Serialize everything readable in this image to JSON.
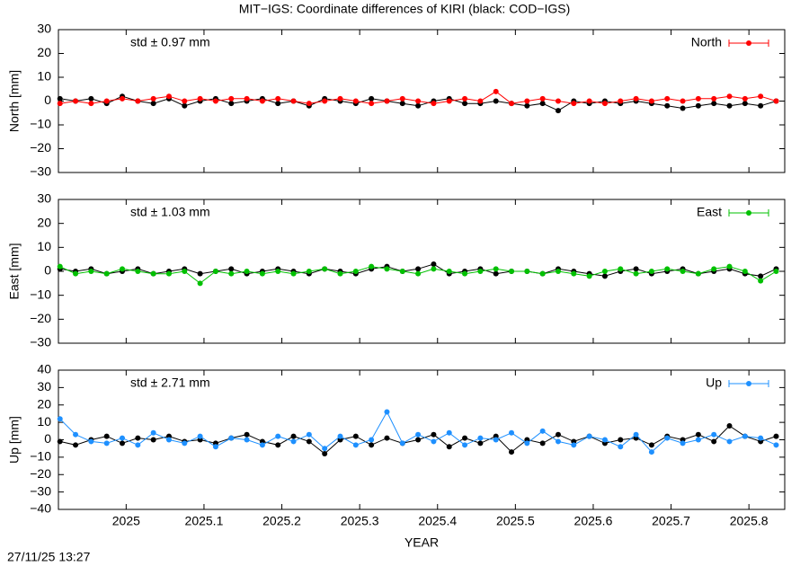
{
  "title": "MIT−IGS: Coordinate differences of KIRI (black: COD−IGS)",
  "timestamp": "27/11/25 13:27",
  "chart_data": [
    {
      "type": "line",
      "y_label": "North [mm]",
      "annotation": "std ± 0.97 mm",
      "annotation_color": "#ff0000",
      "x": [
        2024.915,
        2024.935,
        2024.955,
        2024.975,
        2024.995,
        2025.015,
        2025.035,
        2025.055,
        2025.075,
        2025.095,
        2025.115,
        2025.135,
        2025.155,
        2025.175,
        2025.195,
        2025.215,
        2025.235,
        2025.255,
        2025.275,
        2025.295,
        2025.315,
        2025.335,
        2025.355,
        2025.375,
        2025.395,
        2025.415,
        2025.435,
        2025.455,
        2025.475,
        2025.495,
        2025.515,
        2025.535,
        2025.555,
        2025.575,
        2025.595,
        2025.615,
        2025.635,
        2025.655,
        2025.675,
        2025.695,
        2025.715,
        2025.735,
        2025.755,
        2025.775,
        2025.795,
        2025.815,
        2025.835
      ],
      "xlim": [
        2024.913,
        2025.846
      ],
      "xticks": [
        2025,
        2025.1,
        2025.2,
        2025.3,
        2025.4,
        2025.5,
        2025.6,
        2025.7,
        2025.8
      ],
      "ylim": [
        -30,
        30
      ],
      "yticks": [
        {
          "value": -30,
          "label": "−30"
        },
        {
          "value": -20,
          "label": "−20"
        },
        {
          "value": -10,
          "label": "−10"
        },
        0,
        10,
        20,
        30
      ],
      "grid": false,
      "legend": "top-right",
      "series": [
        {
          "color": "#000000",
          "values": [
            1,
            0,
            1,
            -1,
            2,
            0,
            -1,
            1,
            -2,
            0,
            1,
            -1,
            0,
            1,
            -1,
            0,
            -2,
            1,
            0,
            -1,
            1,
            0,
            -1,
            -2,
            0,
            1,
            -1,
            -1,
            0,
            -1,
            -2,
            -1,
            -4,
            0,
            -1,
            0,
            -1,
            0,
            -1,
            -2,
            -3,
            -2,
            -1,
            -2,
            -1,
            -2,
            0
          ]
        },
        {
          "name": "North",
          "color": "#ff0000",
          "values": [
            -1,
            0,
            -1,
            0,
            1,
            0,
            1,
            2,
            0,
            1,
            0,
            1,
            1,
            0,
            1,
            0,
            -1,
            0,
            1,
            0,
            -1,
            0,
            1,
            0,
            -1,
            0,
            1,
            0,
            4,
            -1,
            0,
            1,
            0,
            -1,
            0,
            -1,
            0,
            1,
            0,
            1,
            0,
            1,
            1,
            2,
            1,
            2,
            0
          ]
        }
      ]
    },
    {
      "type": "line",
      "y_label": "East [mm]",
      "annotation": "std ± 1.03 mm",
      "annotation_color": "#00c000",
      "x": [
        2024.915,
        2024.935,
        2024.955,
        2024.975,
        2024.995,
        2025.015,
        2025.035,
        2025.055,
        2025.075,
        2025.095,
        2025.115,
        2025.135,
        2025.155,
        2025.175,
        2025.195,
        2025.215,
        2025.235,
        2025.255,
        2025.275,
        2025.295,
        2025.315,
        2025.335,
        2025.355,
        2025.375,
        2025.395,
        2025.415,
        2025.435,
        2025.455,
        2025.475,
        2025.495,
        2025.515,
        2025.535,
        2025.555,
        2025.575,
        2025.595,
        2025.615,
        2025.635,
        2025.655,
        2025.675,
        2025.695,
        2025.715,
        2025.735,
        2025.755,
        2025.775,
        2025.795,
        2025.815,
        2025.835
      ],
      "xlim": [
        2024.913,
        2025.846
      ],
      "xticks": [
        2025,
        2025.1,
        2025.2,
        2025.3,
        2025.4,
        2025.5,
        2025.6,
        2025.7,
        2025.8
      ],
      "ylim": [
        -30,
        30
      ],
      "yticks": [
        {
          "value": -30,
          "label": "−30"
        },
        {
          "value": -20,
          "label": "−20"
        },
        {
          "value": -10,
          "label": "−10"
        },
        0,
        10,
        20,
        30
      ],
      "grid": false,
      "legend": "top-right",
      "series": [
        {
          "color": "#000000",
          "values": [
            1,
            0,
            1,
            -1,
            0,
            1,
            -1,
            0,
            1,
            -1,
            0,
            1,
            -1,
            0,
            1,
            0,
            -1,
            1,
            0,
            -1,
            1,
            2,
            0,
            1,
            3,
            -1,
            0,
            1,
            -1,
            0,
            0,
            -1,
            1,
            0,
            -1,
            -2,
            0,
            1,
            -1,
            0,
            1,
            -1,
            0,
            1,
            -1,
            -2,
            1
          ]
        },
        {
          "name": "East",
          "color": "#00c000",
          "values": [
            2,
            -1,
            0,
            -1,
            1,
            0,
            -1,
            -1,
            0,
            -5,
            0,
            -1,
            0,
            -1,
            0,
            -1,
            0,
            1,
            -1,
            0,
            2,
            1,
            0,
            -1,
            1,
            0,
            -1,
            0,
            1,
            0,
            0,
            -1,
            0,
            -1,
            -2,
            0,
            1,
            -1,
            0,
            1,
            0,
            -1,
            1,
            2,
            0,
            -4,
            0
          ]
        }
      ]
    },
    {
      "type": "line",
      "y_label": "Up [mm]",
      "x_label": "YEAR",
      "annotation": "std ± 2.71 mm",
      "annotation_color": "#1e90ff",
      "x": [
        2024.915,
        2024.935,
        2024.955,
        2024.975,
        2024.995,
        2025.015,
        2025.035,
        2025.055,
        2025.075,
        2025.095,
        2025.115,
        2025.135,
        2025.155,
        2025.175,
        2025.195,
        2025.215,
        2025.235,
        2025.255,
        2025.275,
        2025.295,
        2025.315,
        2025.335,
        2025.355,
        2025.375,
        2025.395,
        2025.415,
        2025.435,
        2025.455,
        2025.475,
        2025.495,
        2025.515,
        2025.535,
        2025.555,
        2025.575,
        2025.595,
        2025.615,
        2025.635,
        2025.655,
        2025.675,
        2025.695,
        2025.715,
        2025.735,
        2025.755,
        2025.775,
        2025.795,
        2025.815,
        2025.835
      ],
      "xlim": [
        2024.913,
        2025.846
      ],
      "xticks": [
        2025,
        2025.1,
        2025.2,
        2025.3,
        2025.4,
        2025.5,
        2025.6,
        2025.7,
        2025.8
      ],
      "ylim": [
        -40,
        40
      ],
      "yticks": [
        {
          "value": -40,
          "label": "−40"
        },
        {
          "value": -30,
          "label": "−30"
        },
        {
          "value": -20,
          "label": "−20"
        },
        {
          "value": -10,
          "label": "−10"
        },
        0,
        10,
        20,
        30,
        40
      ],
      "grid": false,
      "legend": "top-right",
      "series": [
        {
          "color": "#000000",
          "values": [
            -1,
            -3,
            0,
            2,
            -2,
            1,
            0,
            2,
            -1,
            0,
            -2,
            1,
            3,
            -1,
            -3,
            2,
            -1,
            -8,
            0,
            2,
            -3,
            1,
            -2,
            0,
            3,
            -4,
            1,
            -2,
            2,
            -7,
            0,
            -2,
            3,
            -1,
            2,
            -2,
            0,
            1,
            -3,
            2,
            0,
            3,
            -1,
            8,
            2,
            -1,
            2
          ]
        },
        {
          "name": "Up",
          "color": "#1e90ff",
          "values": [
            12,
            3,
            -1,
            -2,
            1,
            -3,
            4,
            0,
            -2,
            2,
            -4,
            1,
            0,
            -3,
            2,
            -1,
            3,
            -5,
            2,
            -3,
            0,
            16,
            -2,
            3,
            -1,
            4,
            -3,
            1,
            0,
            4,
            -2,
            5,
            -1,
            -3,
            2,
            0,
            -4,
            3,
            -7,
            1,
            -2,
            0,
            3,
            -1,
            2,
            1,
            -3
          ]
        }
      ]
    }
  ]
}
